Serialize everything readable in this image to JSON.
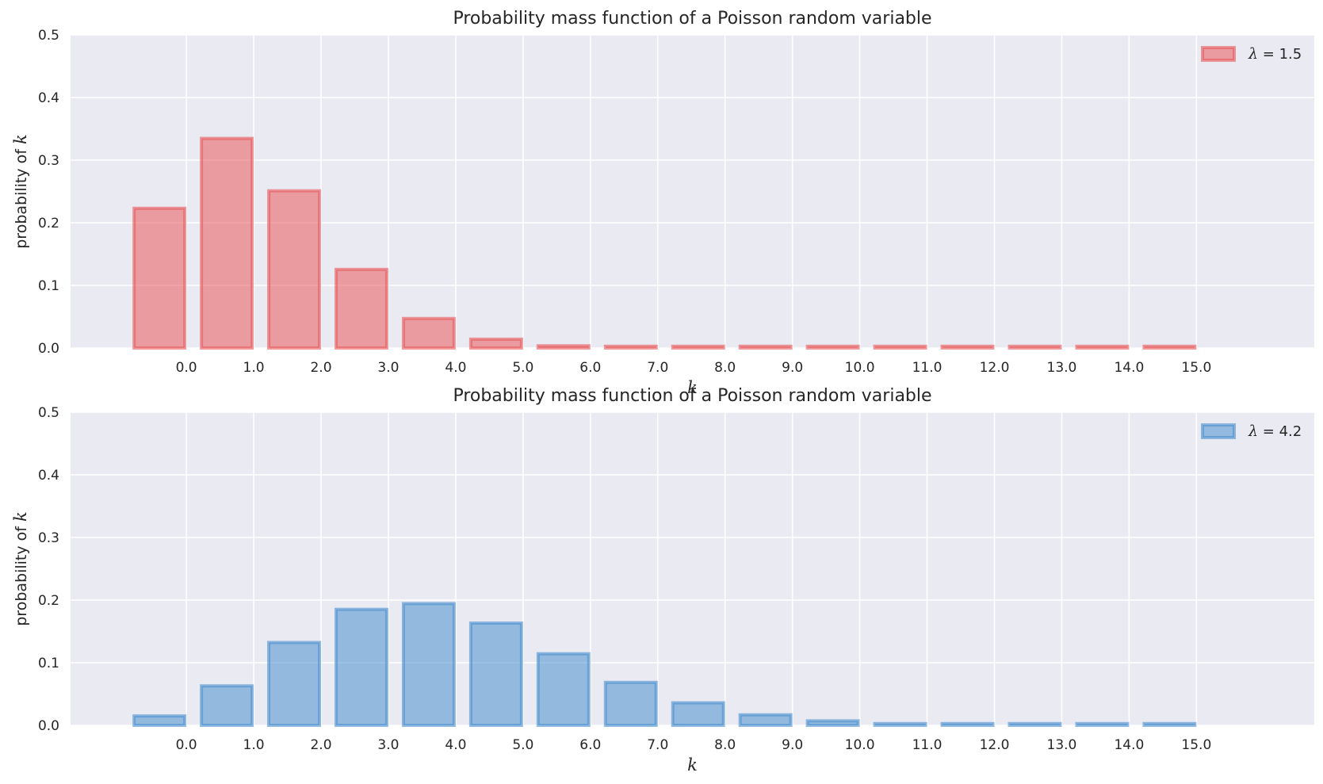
{
  "chart_data": [
    {
      "type": "bar",
      "title": "Probability mass function of a Poisson random variable",
      "xlabel": "k",
      "ylabel_text": "probability of ",
      "ylabel_var": "k",
      "ylim": [
        0,
        0.5
      ],
      "yticks": [
        "0.0",
        "0.1",
        "0.2",
        "0.3",
        "0.4",
        "0.5"
      ],
      "xticks": [
        "0.0",
        "1.0",
        "2.0",
        "3.0",
        "4.0",
        "5.0",
        "6.0",
        "7.0",
        "8.0",
        "9.0",
        "10.0",
        "11.0",
        "12.0",
        "13.0",
        "14.0",
        "15.0"
      ],
      "grid": true,
      "legend_position": "top-right",
      "series": [
        {
          "name_symbol": "λ",
          "name_value": " = 1.5",
          "color": "#e8595c",
          "x": [
            0,
            1,
            2,
            3,
            4,
            5,
            6,
            7,
            8,
            9,
            10,
            11,
            12,
            13,
            14,
            15
          ],
          "values": [
            0.2231,
            0.3347,
            0.251,
            0.1255,
            0.0471,
            0.0141,
            0.0035,
            0.0008,
            0.0001,
            0.0,
            0.0,
            0.0,
            0.0,
            0.0,
            0.0,
            0.0
          ]
        }
      ]
    },
    {
      "type": "bar",
      "title": "Probability mass function of a Poisson random variable",
      "xlabel": "k",
      "ylabel_text": "probability of ",
      "ylabel_var": "k",
      "ylim": [
        0,
        0.5
      ],
      "yticks": [
        "0.0",
        "0.1",
        "0.2",
        "0.3",
        "0.4",
        "0.5"
      ],
      "xticks": [
        "0.0",
        "1.0",
        "2.0",
        "3.0",
        "4.0",
        "5.0",
        "6.0",
        "7.0",
        "8.0",
        "9.0",
        "10.0",
        "11.0",
        "12.0",
        "13.0",
        "14.0",
        "15.0"
      ],
      "grid": true,
      "legend_position": "top-right",
      "series": [
        {
          "name_symbol": "λ",
          "name_value": " = 4.2",
          "color": "#4a90cf",
          "x": [
            0,
            1,
            2,
            3,
            4,
            5,
            6,
            7,
            8,
            9,
            10,
            11,
            12,
            13,
            14,
            15
          ],
          "values": [
            0.015,
            0.063,
            0.1323,
            0.1852,
            0.1944,
            0.1633,
            0.1143,
            0.0686,
            0.036,
            0.0168,
            0.0071,
            0.0027,
            0.0009,
            0.0003,
            0.0001,
            0.0
          ]
        }
      ]
    }
  ]
}
